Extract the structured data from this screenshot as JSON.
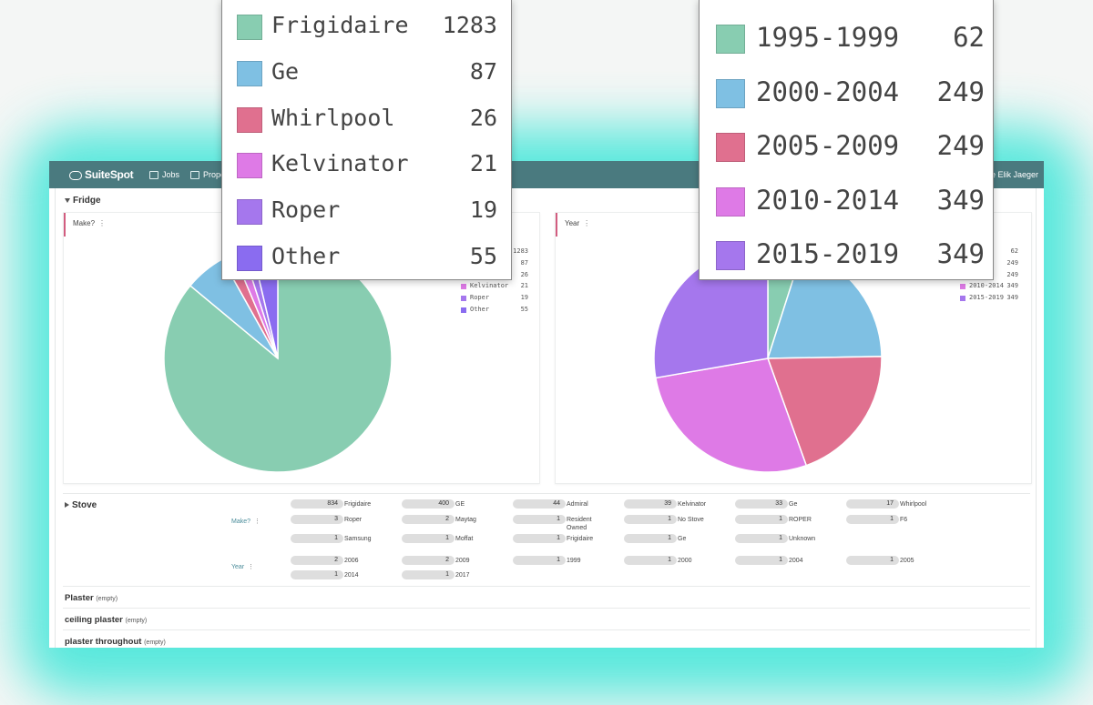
{
  "app": {
    "logo": "SuiteSpot",
    "nav": [
      {
        "label": "Jobs",
        "icon": "briefcase-icon"
      },
      {
        "label": "Proper",
        "icon": "building-icon"
      }
    ],
    "welcome": "ome Elik Jaeger"
  },
  "fridge": {
    "title": "Fridge",
    "make_card": {
      "label": "Make?",
      "legend": [
        {
          "name": "",
          "count": "1283"
        },
        {
          "name": "",
          "count": "87"
        },
        {
          "name": "",
          "count": "26"
        },
        {
          "name": "Kelvinator",
          "count": "21"
        },
        {
          "name": "Roper",
          "count": "19"
        },
        {
          "name": "Other",
          "count": "55"
        }
      ]
    },
    "year_card": {
      "label": "Year",
      "legend": [
        {
          "name": "999",
          "count": "62"
        },
        {
          "name": "004",
          "count": "249"
        },
        {
          "name": "009",
          "count": "249"
        },
        {
          "name": "2010-2014",
          "count": "349"
        },
        {
          "name": "2015-2019",
          "count": "349"
        }
      ]
    }
  },
  "chart_data": [
    {
      "type": "pie",
      "title": "Make?",
      "categories": [
        "Frigidaire",
        "Ge",
        "Whirlpool",
        "Kelvinator",
        "Roper",
        "Other"
      ],
      "values": [
        1283,
        87,
        26,
        21,
        19,
        55
      ],
      "colors": [
        "#88cdb1",
        "#7fc0e3",
        "#e0708f",
        "#de7ae6",
        "#a577ed",
        "#8a6cf0"
      ]
    },
    {
      "type": "pie",
      "title": "Year",
      "categories": [
        "1995-1999",
        "2000-2004",
        "2005-2009",
        "2010-2014",
        "2015-2019"
      ],
      "values": [
        62,
        249,
        249,
        349,
        349
      ],
      "colors": [
        "#88cdb1",
        "#7fc0e3",
        "#e0708f",
        "#de7ae6",
        "#a577ed"
      ]
    }
  ],
  "stove": {
    "title": "Stove",
    "make_label": "Make?",
    "year_label": "Year",
    "make_items": [
      {
        "count": "834",
        "label": "Frigidaire"
      },
      {
        "count": "400",
        "label": "GE"
      },
      {
        "count": "44",
        "label": "Admiral"
      },
      {
        "count": "39",
        "label": "Kelvinator"
      },
      {
        "count": "33",
        "label": "Ge"
      },
      {
        "count": "17",
        "label": "Whirlpool"
      },
      {
        "count": "3",
        "label": "Roper"
      },
      {
        "count": "2",
        "label": "Maytag"
      },
      {
        "count": "1",
        "label": "Resident Owned"
      },
      {
        "count": "1",
        "label": "No Stove"
      },
      {
        "count": "1",
        "label": "ROPER"
      },
      {
        "count": "1",
        "label": "F6"
      },
      {
        "count": "1",
        "label": "Samsung"
      },
      {
        "count": "1",
        "label": "Moffat"
      },
      {
        "count": "1",
        "label": "Frigidaire"
      },
      {
        "count": "1",
        "label": "Ge"
      },
      {
        "count": "1",
        "label": "Unknown"
      }
    ],
    "year_items": [
      {
        "count": "2",
        "label": "2006"
      },
      {
        "count": "2",
        "label": "2009"
      },
      {
        "count": "1",
        "label": "1999"
      },
      {
        "count": "1",
        "label": "2000"
      },
      {
        "count": "1",
        "label": "2004"
      },
      {
        "count": "1",
        "label": "2005"
      },
      {
        "count": "1",
        "label": "2014"
      },
      {
        "count": "1",
        "label": "2017"
      }
    ]
  },
  "empty_sections": [
    {
      "title": "Plaster",
      "note": "(empty)"
    },
    {
      "title": "ceiling plaster",
      "note": "(empty)"
    },
    {
      "title": "plaster throughout",
      "note": "(empty)"
    }
  ],
  "zoom_make": [
    {
      "name": "Frigidaire",
      "count": "1283"
    },
    {
      "name": "Ge",
      "count": "87"
    },
    {
      "name": "Whirlpool",
      "count": "26"
    },
    {
      "name": "Kelvinator",
      "count": "21"
    },
    {
      "name": "Roper",
      "count": "19"
    },
    {
      "name": "Other",
      "count": "55"
    }
  ],
  "zoom_year": [
    {
      "name": "1995-1999",
      "count": "62"
    },
    {
      "name": "2000-2004",
      "count": "249"
    },
    {
      "name": "2005-2009",
      "count": "249"
    },
    {
      "name": "2010-2014",
      "count": "349"
    },
    {
      "name": "2015-2019",
      "count": "349"
    }
  ]
}
